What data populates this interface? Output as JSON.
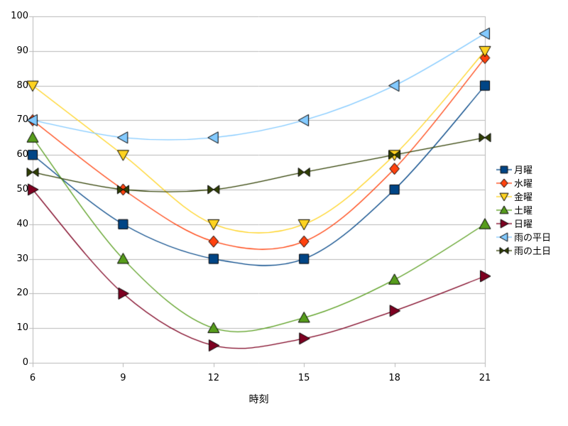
{
  "chart_data": {
    "type": "line",
    "smooth": true,
    "x": [
      6,
      9,
      12,
      15,
      18,
      21
    ],
    "x_tick_labels": [
      "6",
      "9",
      "12",
      "15",
      "18",
      "21"
    ],
    "xlabel": "時刻",
    "ylim": [
      0,
      100
    ],
    "y_ticks": [
      0,
      10,
      20,
      30,
      40,
      50,
      60,
      70,
      80,
      90,
      100
    ],
    "grid": "horizontal",
    "legend_position": "right",
    "series": [
      {
        "name": "月曜",
        "color": "#004586",
        "marker": "square",
        "values": [
          60,
          40,
          30,
          30,
          50,
          80
        ]
      },
      {
        "name": "水曜",
        "color": "#ff420e",
        "marker": "diamond",
        "values": [
          70,
          50,
          35,
          35,
          56,
          88
        ]
      },
      {
        "name": "金曜",
        "color": "#ffd320",
        "marker": "triangle-down",
        "values": [
          80,
          60,
          40,
          40,
          60,
          90
        ]
      },
      {
        "name": "土曜",
        "color": "#579d1c",
        "marker": "triangle-up",
        "values": [
          65,
          30,
          10,
          13,
          24,
          40
        ]
      },
      {
        "name": "日曜",
        "color": "#7e0021",
        "marker": "triangle-right",
        "values": [
          50,
          20,
          5,
          7,
          15,
          25
        ]
      },
      {
        "name": "雨の平日",
        "color": "#83caff",
        "marker": "triangle-left",
        "values": [
          70,
          65,
          65,
          70,
          80,
          95
        ]
      },
      {
        "name": "雨の土日",
        "color": "#314004",
        "marker": "bowtie",
        "values": [
          55,
          50,
          50,
          55,
          60,
          65
        ]
      }
    ],
    "colors": {
      "background": "#ffffff",
      "grid": "#b9b9b9",
      "axis": "#b9b9b9",
      "label": "#000000",
      "marker_border": "#000000"
    }
  }
}
